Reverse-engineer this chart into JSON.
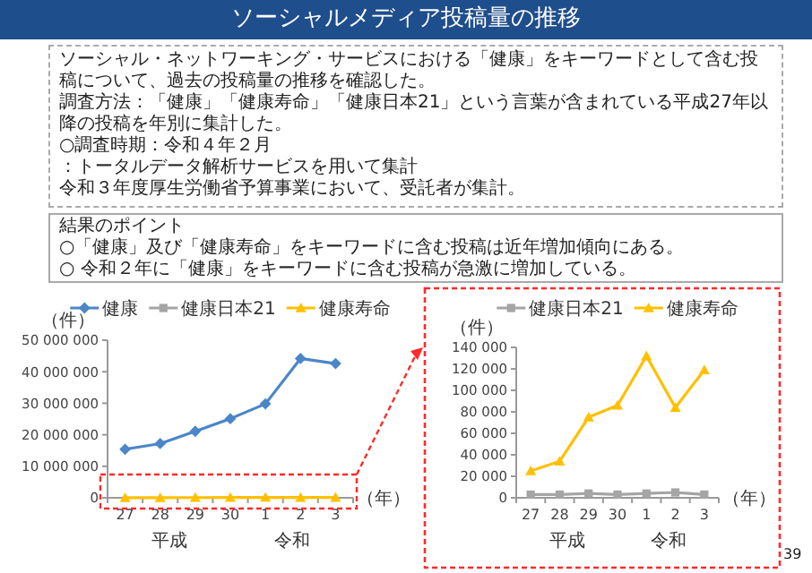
{
  "chart_data": [
    {
      "type": "other",
      "title": "ソーシャルメディア投稿量の推移",
      "annotations": [
        "ソーシャル・ネットワーキング・サービスにおける「健康」をキーワードとして含む投稿について、過去の投稿量の推移を確認した。",
        "調査方法：「健康」「健康寿命」「健康日本21」という言葉が含まれている平成27年以降の投稿を年別に集計した。",
        "○調査時期：令和４年２月",
        "：トータルデータ解析サービスを用いて集計",
        "令和３年度厚生労働省予算事業において、受託者が集計。",
        "結果のポイント",
        "○「健康」及び「健康寿命」をキーワードに含む投稿は近年増加傾向にある。",
        "○ 令和２年に「健康」をキーワードに含む投稿が急激に増加している。",
        "39"
      ]
    },
    {
      "type": "line",
      "ylabel": "（件）",
      "xlabel": "（年）",
      "categories": [
        "27",
        "28",
        "29",
        "30",
        "1",
        "2",
        "3"
      ],
      "annotations": [
        "平成",
        "令和"
      ],
      "ylim": [
        0,
        50000000
      ],
      "yticks": [
        {
          "value": 0,
          "label": "0"
        },
        {
          "value": 10000000,
          "label": "10 000 000"
        },
        {
          "value": 20000000,
          "label": "20 000 000"
        },
        {
          "value": 30000000,
          "label": "30 000 000"
        },
        {
          "value": 40000000,
          "label": "40 000 000"
        },
        {
          "value": 50000000,
          "label": "50 000 000"
        }
      ],
      "legend": "top",
      "grid": false,
      "series": [
        {
          "name": "健康",
          "color": "#4a86c8",
          "marker": "diamond",
          "values": [
            15400000,
            17200000,
            21100000,
            25100000,
            29800000,
            44200000,
            42600000
          ]
        },
        {
          "name": "健康日本21",
          "color": "#a5a5a5",
          "marker": "square",
          "values": [
            null,
            null,
            null,
            null,
            null,
            null,
            null
          ]
        },
        {
          "name": "健康寿命",
          "color": "#ffc000",
          "marker": "triangle",
          "values": [
            25000,
            34000,
            75500,
            86000,
            132000,
            84500,
            119500
          ]
        }
      ]
    },
    {
      "type": "line",
      "ylabel": "（件）",
      "xlabel": "（年）",
      "categories": [
        "27",
        "28",
        "29",
        "30",
        "1",
        "2",
        "3"
      ],
      "annotations": [
        "平成",
        "令和"
      ],
      "ylim": [
        0,
        140000
      ],
      "yticks": [
        {
          "value": 0,
          "label": "0"
        },
        {
          "value": 20000,
          "label": "20 000"
        },
        {
          "value": 40000,
          "label": "40 000"
        },
        {
          "value": 60000,
          "label": "60 000"
        },
        {
          "value": 80000,
          "label": "80 000"
        },
        {
          "value": 100000,
          "label": "100 000"
        },
        {
          "value": 120000,
          "label": "120 000"
        },
        {
          "value": 140000,
          "label": "140 000"
        }
      ],
      "legend": "top",
      "grid": false,
      "series": [
        {
          "name": "健康日本21",
          "color": "#a5a5a5",
          "marker": "square",
          "values": [
            3000,
            3000,
            4000,
            3000,
            4000,
            5000,
            3000
          ]
        },
        {
          "name": "健康寿命",
          "color": "#ffc000",
          "marker": "triangle",
          "values": [
            25000,
            34000,
            75000,
            86000,
            132000,
            84000,
            119000
          ]
        }
      ]
    }
  ]
}
